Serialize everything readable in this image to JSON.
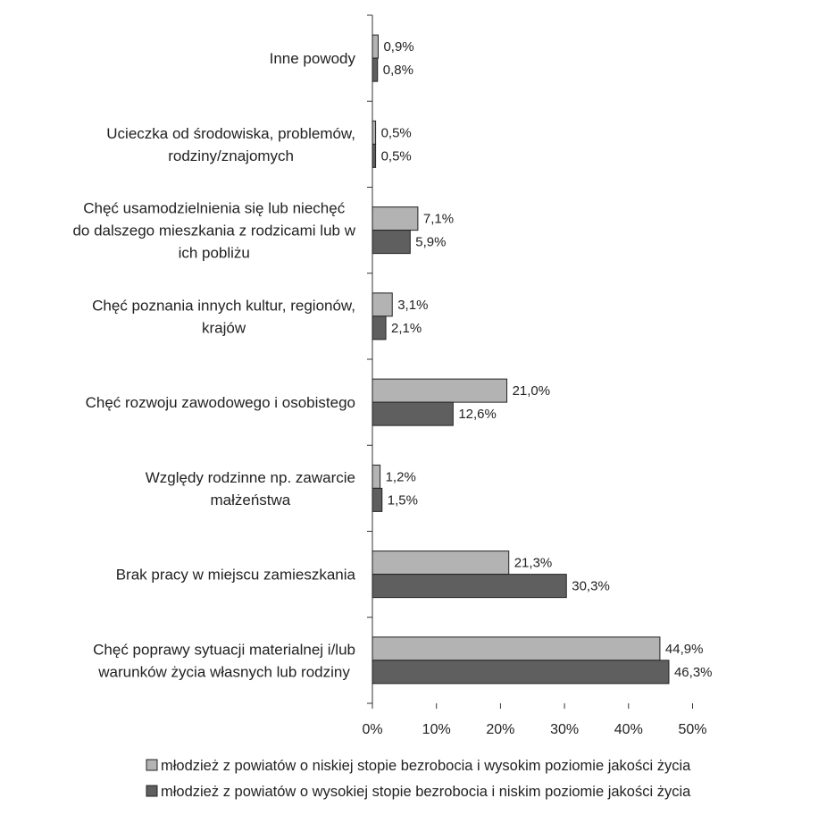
{
  "chart_data": {
    "type": "bar",
    "orientation": "horizontal",
    "categories": [
      "Inne powody",
      "Ucieczka od środowiska, problemów, rodziny/znajomych",
      "Chęć usamodzielnienia się lub niechęć do dalszego mieszkania z rodzicami lub w ich pobliżu",
      "Chęć poznania innych kultur, regionów, krajów",
      "Chęć rozwoju zawodowego i osobistego",
      "Względy rodzinne np. zawarcie małżeństwa",
      "Brak pracy w miejscu zamieszkania",
      "Chęć poprawy sytuacji materialnej i/lub warunków życia własnych lub rodziny"
    ],
    "category_label_lines": [
      [
        "Inne powody"
      ],
      [
        "Ucieczka od środowiska, problemów,",
        "rodziny/znajomych"
      ],
      [
        "Chęć usamodzielnienia się lub niechęć",
        "do dalszego mieszkania z rodzicami lub w",
        "ich pobliżu"
      ],
      [
        "Chęć poznania innych kultur, regionów,",
        "krajów"
      ],
      [
        "Chęć rozwoju zawodowego i osobistego"
      ],
      [
        "Względy rodzinne np. zawarcie",
        "małżeństwa"
      ],
      [
        "Brak pracy w miejscu zamieszkania"
      ],
      [
        "Chęć poprawy sytuacji materialnej i/lub",
        "warunków życia własnych lub rodziny"
      ]
    ],
    "series": [
      {
        "name": "młodzież z powiatów o niskiej stopie bezrobocia i wysokim poziomie jakości życia",
        "color": "#b3b3b3",
        "values": [
          0.9,
          0.5,
          7.1,
          3.1,
          21.0,
          1.2,
          21.3,
          44.9
        ],
        "labels": [
          "0,9%",
          "0,5%",
          "7,1%",
          "3,1%",
          "21,0%",
          "1,2%",
          "21,3%",
          "44,9%"
        ]
      },
      {
        "name": "młodzież z powiatów o wysokiej stopie bezrobocia i niskim poziomie jakości życia",
        "color": "#5f5f5f",
        "values": [
          0.8,
          0.5,
          5.9,
          2.1,
          12.6,
          1.5,
          30.3,
          46.3
        ],
        "labels": [
          "0,8%",
          "0,5%",
          "5,9%",
          "2,1%",
          "12,6%",
          "1,5%",
          "30,3%",
          "46,3%"
        ]
      }
    ],
    "x_ticks": [
      "0%",
      "10%",
      "20%",
      "30%",
      "40%",
      "50%"
    ],
    "xlim": [
      0,
      50
    ],
    "title": "",
    "xlabel": "",
    "ylabel": "",
    "grid": false,
    "legend_position": "bottom"
  }
}
